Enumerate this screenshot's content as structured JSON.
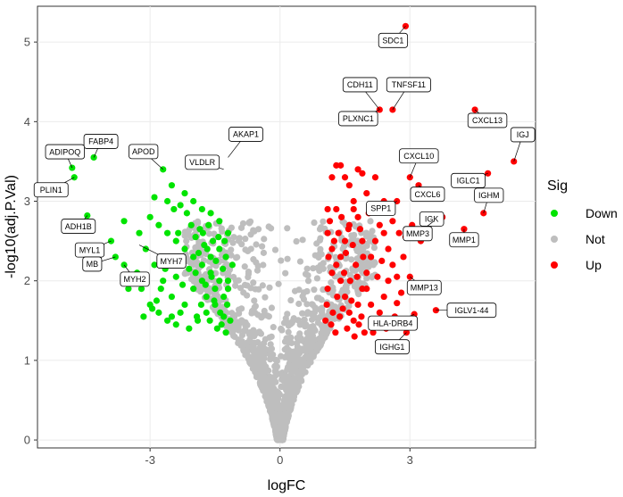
{
  "chart_data": {
    "type": "scatter",
    "title": "",
    "xlabel": "logFC",
    "ylabel": "-log10(adj.P.Val)",
    "xlim": [
      -5.6,
      5.9
    ],
    "ylim": [
      -0.1,
      5.45
    ],
    "x_ticks": [
      -3,
      0,
      3
    ],
    "y_ticks": [
      0,
      1,
      2,
      3,
      4,
      5
    ],
    "x_tick_labels": [
      "-3",
      "0",
      "3"
    ],
    "y_tick_labels": [
      "0",
      "1",
      "2",
      "3",
      "4",
      "5"
    ],
    "grid": true,
    "panel_border": true,
    "legend": {
      "title": "Sig",
      "position": "right",
      "entries": [
        {
          "label": "Down",
          "color": "#00e400"
        },
        {
          "label": "Not",
          "color": "#bebebe"
        },
        {
          "label": "Up",
          "color": "#ff0000"
        }
      ]
    },
    "colors": {
      "Down": "#00e400",
      "Not": "#bebebe",
      "Up": "#ff0000"
    },
    "series": [
      {
        "name": "Down",
        "points": [
          [
            -4.8,
            3.42
          ],
          [
            -4.75,
            3.3
          ],
          [
            -4.45,
            2.82
          ],
          [
            -3.9,
            2.5
          ],
          [
            -3.8,
            2.3
          ],
          [
            -3.6,
            2.2
          ],
          [
            -4.3,
            3.55
          ],
          [
            -2.7,
            3.4
          ],
          [
            -2.9,
            3.05
          ],
          [
            -2.5,
            3.2
          ],
          [
            -2.2,
            3.1
          ],
          [
            -2.0,
            3.0
          ],
          [
            -1.8,
            2.9
          ],
          [
            -1.6,
            2.85
          ],
          [
            -1.4,
            2.75
          ],
          [
            -3.0,
            2.8
          ],
          [
            -2.8,
            2.7
          ],
          [
            -2.6,
            2.6
          ],
          [
            -2.4,
            2.5
          ],
          [
            -2.2,
            2.4
          ],
          [
            -2.0,
            2.3
          ],
          [
            -1.8,
            2.2
          ],
          [
            -1.6,
            2.1
          ],
          [
            -1.4,
            2.0
          ],
          [
            -1.2,
            1.9
          ],
          [
            -1.3,
            1.8
          ],
          [
            -1.5,
            1.7
          ],
          [
            -1.7,
            1.6
          ],
          [
            -1.9,
            1.5
          ],
          [
            -2.1,
            1.4
          ],
          [
            -2.3,
            1.6
          ],
          [
            -2.5,
            1.8
          ],
          [
            -2.7,
            2.0
          ],
          [
            -2.9,
            2.2
          ],
          [
            -3.1,
            2.4
          ],
          [
            -3.2,
            1.9
          ],
          [
            -3.0,
            1.7
          ],
          [
            -2.8,
            1.6
          ],
          [
            -2.6,
            1.5
          ],
          [
            -2.4,
            1.45
          ],
          [
            -2.2,
            1.7
          ],
          [
            -2.0,
            1.9
          ],
          [
            -1.8,
            2.0
          ],
          [
            -1.6,
            2.3
          ],
          [
            -1.4,
            2.4
          ],
          [
            -1.2,
            2.6
          ],
          [
            -1.1,
            2.2
          ],
          [
            -1.15,
            1.5
          ],
          [
            -1.25,
            1.35
          ],
          [
            -1.3,
            1.55
          ],
          [
            -1.35,
            1.45
          ],
          [
            -1.45,
            1.4
          ],
          [
            -1.5,
            1.9
          ],
          [
            -1.55,
            2.5
          ],
          [
            -1.65,
            2.7
          ],
          [
            -1.75,
            2.45
          ],
          [
            -1.85,
            2.65
          ],
          [
            -1.95,
            2.55
          ],
          [
            -2.05,
            2.7
          ],
          [
            -2.15,
            2.85
          ],
          [
            -2.3,
            2.95
          ],
          [
            -2.45,
            2.9
          ],
          [
            -2.55,
            2.3
          ],
          [
            -2.65,
            2.15
          ],
          [
            -2.75,
            1.9
          ],
          [
            -2.85,
            1.75
          ],
          [
            -2.95,
            1.65
          ],
          [
            -3.3,
            2.1
          ],
          [
            -3.4,
            2.0
          ],
          [
            -3.5,
            1.9
          ],
          [
            -3.25,
            2.6
          ],
          [
            -2.6,
            3.0
          ],
          [
            -2.35,
            2.6
          ],
          [
            -1.95,
            2.1
          ],
          [
            -1.7,
            1.8
          ],
          [
            -1.25,
            2.3
          ],
          [
            -1.2,
            2.0
          ],
          [
            -1.22,
            1.7
          ],
          [
            -1.28,
            2.5
          ],
          [
            -1.32,
            2.15
          ],
          [
            -1.38,
            1.6
          ],
          [
            -1.42,
            2.55
          ],
          [
            -1.48,
            2.25
          ],
          [
            -1.52,
            1.75
          ],
          [
            -1.58,
            2.05
          ],
          [
            -1.62,
            1.5
          ],
          [
            -1.68,
            2.4
          ],
          [
            -1.72,
            1.95
          ],
          [
            -1.78,
            2.6
          ],
          [
            -1.82,
            1.7
          ],
          [
            -1.88,
            2.35
          ],
          [
            -1.92,
            1.55
          ],
          [
            -2.1,
            2.15
          ],
          [
            -2.25,
            1.95
          ],
          [
            -2.4,
            2.05
          ],
          [
            -2.5,
            1.55
          ],
          [
            -3.6,
            2.75
          ],
          [
            -3.15,
            1.55
          ]
        ]
      },
      {
        "name": "Up",
        "points": [
          [
            2.9,
            5.2
          ],
          [
            2.3,
            4.15
          ],
          [
            2.6,
            4.15
          ],
          [
            4.5,
            4.15
          ],
          [
            4.8,
            3.35
          ],
          [
            5.4,
            3.5
          ],
          [
            4.7,
            2.85
          ],
          [
            4.25,
            2.65
          ],
          [
            3.55,
            2.75
          ],
          [
            3.75,
            2.8
          ],
          [
            3.0,
            3.3
          ],
          [
            2.7,
            3.0
          ],
          [
            3.2,
            3.2
          ],
          [
            3.05,
            2.7
          ],
          [
            3.25,
            2.5
          ],
          [
            3.0,
            2.05
          ],
          [
            2.7,
            1.72
          ],
          [
            3.1,
            1.58
          ],
          [
            3.6,
            1.63
          ],
          [
            2.92,
            1.35
          ],
          [
            1.1,
            2.9
          ],
          [
            1.2,
            3.3
          ],
          [
            1.4,
            3.45
          ],
          [
            1.6,
            3.2
          ],
          [
            1.8,
            3.4
          ],
          [
            2.0,
            3.1
          ],
          [
            2.2,
            3.3
          ],
          [
            2.4,
            3.0
          ],
          [
            1.1,
            2.6
          ],
          [
            1.2,
            2.4
          ],
          [
            1.3,
            2.2
          ],
          [
            1.4,
            2.0
          ],
          [
            1.5,
            1.8
          ],
          [
            1.6,
            1.6
          ],
          [
            1.7,
            1.5
          ],
          [
            1.8,
            1.7
          ],
          [
            1.9,
            1.9
          ],
          [
            2.0,
            2.1
          ],
          [
            2.1,
            2.3
          ],
          [
            2.2,
            2.5
          ],
          [
            2.3,
            2.7
          ],
          [
            2.4,
            2.6
          ],
          [
            2.5,
            2.4
          ],
          [
            2.6,
            2.2
          ],
          [
            2.5,
            2.0
          ],
          [
            2.4,
            1.8
          ],
          [
            2.3,
            1.6
          ],
          [
            2.2,
            1.5
          ],
          [
            2.1,
            1.7
          ],
          [
            2.0,
            1.9
          ],
          [
            1.9,
            2.5
          ],
          [
            1.8,
            2.8
          ],
          [
            1.7,
            2.9
          ],
          [
            1.6,
            2.7
          ],
          [
            1.5,
            2.5
          ],
          [
            1.4,
            2.3
          ],
          [
            1.3,
            2.9
          ],
          [
            1.2,
            2.1
          ],
          [
            1.1,
            1.9
          ],
          [
            1.05,
            1.5
          ],
          [
            1.08,
            1.7
          ],
          [
            1.12,
            2.3
          ],
          [
            1.15,
            2.75
          ],
          [
            1.18,
            1.45
          ],
          [
            1.22,
            1.6
          ],
          [
            1.25,
            2.5
          ],
          [
            1.28,
            1.35
          ],
          [
            1.32,
            1.8
          ],
          [
            1.35,
            2.6
          ],
          [
            1.38,
            1.55
          ],
          [
            1.42,
            2.8
          ],
          [
            1.45,
            1.65
          ],
          [
            1.48,
            2.1
          ],
          [
            1.52,
            2.35
          ],
          [
            1.55,
            1.4
          ],
          [
            1.58,
            2.65
          ],
          [
            1.62,
            2.0
          ],
          [
            1.65,
            1.75
          ],
          [
            1.68,
            2.45
          ],
          [
            1.72,
            1.3
          ],
          [
            1.75,
            2.2
          ],
          [
            1.78,
            2.05
          ],
          [
            1.82,
            1.45
          ],
          [
            1.85,
            2.65
          ],
          [
            1.88,
            1.55
          ],
          [
            1.92,
            2.3
          ],
          [
            1.95,
            1.35
          ],
          [
            2.05,
            2.85
          ],
          [
            2.15,
            1.35
          ],
          [
            2.25,
            2.05
          ],
          [
            2.35,
            2.25
          ],
          [
            2.45,
            1.4
          ],
          [
            2.55,
            2.9
          ],
          [
            2.65,
            1.55
          ],
          [
            2.75,
            2.6
          ],
          [
            2.85,
            2.3
          ],
          [
            2.7,
            2.05
          ],
          [
            2.8,
            1.85
          ],
          [
            2.9,
            2.55
          ],
          [
            2.6,
            2.75
          ],
          [
            1.3,
            3.45
          ],
          [
            1.5,
            3.3
          ],
          [
            1.7,
            3.0
          ],
          [
            1.9,
            3.35
          ]
        ]
      }
    ],
    "labels": [
      {
        "text": "SDC1",
        "x": 2.9,
        "y": 5.2
      },
      {
        "text": "CDH11",
        "x": 2.3,
        "y": 4.15
      },
      {
        "text": "TNFSF11",
        "x": 2.6,
        "y": 4.15
      },
      {
        "text": "PLXNC1",
        "x": 2.3,
        "y": 4.15
      },
      {
        "text": "CXCL13",
        "x": 4.5,
        "y": 4.15
      },
      {
        "text": "IGJ",
        "x": 5.4,
        "y": 3.5
      },
      {
        "text": "IGLC1",
        "x": 4.8,
        "y": 3.35
      },
      {
        "text": "CXCL10",
        "x": 3.0,
        "y": 3.3
      },
      {
        "text": "SPP1",
        "x": 2.7,
        "y": 3.0
      },
      {
        "text": "CXCL6",
        "x": 3.2,
        "y": 3.2
      },
      {
        "text": "IGHM",
        "x": 4.7,
        "y": 2.85
      },
      {
        "text": "IGK",
        "x": 3.75,
        "y": 2.8
      },
      {
        "text": "MMP3",
        "x": 3.55,
        "y": 2.75
      },
      {
        "text": "MMP1",
        "x": 4.25,
        "y": 2.65
      },
      {
        "text": "MMP13",
        "x": 3.0,
        "y": 2.05
      },
      {
        "text": "IGLV1-44",
        "x": 3.6,
        "y": 1.63
      },
      {
        "text": "HLA-DRB4",
        "x": 3.1,
        "y": 1.58
      },
      {
        "text": "IGHG1",
        "x": 2.92,
        "y": 1.35
      },
      {
        "text": "FABP4",
        "x": -4.3,
        "y": 3.55
      },
      {
        "text": "ADIPOQ",
        "x": -4.8,
        "y": 3.42
      },
      {
        "text": "APOD",
        "x": -2.7,
        "y": 3.4
      },
      {
        "text": "AKAP1",
        "x": -1.2,
        "y": 3.55
      },
      {
        "text": "VLDLR",
        "x": -1.3,
        "y": 3.4
      },
      {
        "text": "PLIN1",
        "x": -4.75,
        "y": 3.3
      },
      {
        "text": "ADH1B",
        "x": -4.45,
        "y": 2.82
      },
      {
        "text": "MYL1",
        "x": -3.9,
        "y": 2.5
      },
      {
        "text": "MB",
        "x": -3.8,
        "y": 2.3
      },
      {
        "text": "MYH7",
        "x": -3.25,
        "y": 2.45
      },
      {
        "text": "MYH2",
        "x": -3.6,
        "y": 2.2
      }
    ]
  }
}
